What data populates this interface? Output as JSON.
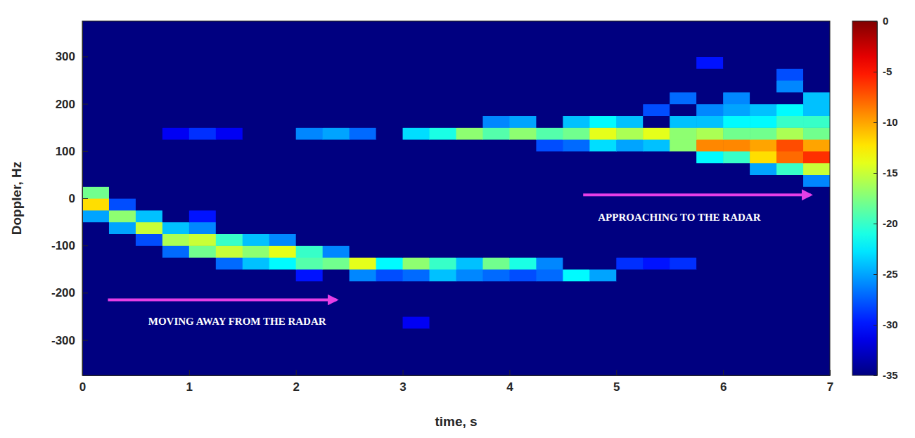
{
  "chart_data": {
    "type": "heatmap",
    "x_label": "time, s",
    "y_label": "Doppler, Hz",
    "xlim": [
      0,
      7
    ],
    "ylim": [
      -375,
      375
    ],
    "xticks": [
      0,
      1,
      2,
      3,
      4,
      5,
      6,
      7
    ],
    "yticks": [
      -300,
      -200,
      -100,
      0,
      100,
      200,
      300
    ],
    "x_edges": [
      0,
      0.25,
      0.5,
      0.75,
      1,
      1.25,
      1.5,
      1.75,
      2,
      2.25,
      2.5,
      2.75,
      3,
      3.25,
      3.5,
      3.75,
      4,
      4.25,
      4.5,
      4.75,
      5,
      5.25,
      5.5,
      5.75,
      6,
      6.25,
      6.5,
      6.75,
      7
    ],
    "y_edges": [
      -375,
      -350,
      -325,
      -300,
      -275,
      -250,
      -225,
      -200,
      -175,
      -150,
      -125,
      -100,
      -75,
      -50,
      -25,
      0,
      25,
      50,
      75,
      100,
      125,
      150,
      175,
      200,
      225,
      250,
      275,
      300,
      325,
      350,
      375
    ],
    "z": [
      [
        -35,
        -35,
        -35,
        -35,
        -35,
        -35,
        -35,
        -35,
        -35,
        -35,
        -35,
        -35,
        -35,
        -35,
        -35,
        -35,
        -35,
        -35,
        -35,
        -35,
        -35,
        -35,
        -35,
        -35,
        -35,
        -35,
        -35,
        -35
      ],
      [
        -35,
        -35,
        -35,
        -35,
        -35,
        -35,
        -35,
        -35,
        -35,
        -35,
        -35,
        -35,
        -35,
        -35,
        -35,
        -35,
        -35,
        -35,
        -35,
        -35,
        -35,
        -35,
        -35,
        -35,
        -35,
        -35,
        -35,
        -35
      ],
      [
        -35,
        -35,
        -35,
        -35,
        -35,
        -35,
        -35,
        -35,
        -35,
        -35,
        -35,
        -35,
        -35,
        -35,
        -35,
        -35,
        -35,
        -35,
        -35,
        -35,
        -35,
        -35,
        -35,
        -35,
        -35,
        -35,
        -35,
        -35
      ],
      [
        -35,
        -35,
        -35,
        -35,
        -35,
        -35,
        -35,
        -35,
        -35,
        -35,
        -35,
        -35,
        -35,
        -35,
        -35,
        -35,
        -35,
        -35,
        -35,
        -35,
        -35,
        -35,
        -35,
        -35,
        -35,
        -35,
        -35,
        -35
      ],
      [
        -35,
        -35,
        -35,
        -35,
        -35,
        -35,
        -35,
        -35,
        -35,
        -35,
        -35,
        -35,
        -31,
        -35,
        -35,
        -35,
        -35,
        -35,
        -35,
        -35,
        -35,
        -35,
        -35,
        -35,
        -35,
        -35,
        -35,
        -35
      ],
      [
        -35,
        -35,
        -35,
        -35,
        -35,
        -35,
        -35,
        -35,
        -35,
        -35,
        -35,
        -35,
        -35,
        -35,
        -35,
        -35,
        -35,
        -35,
        -35,
        -35,
        -35,
        -35,
        -35,
        -35,
        -35,
        -35,
        -35,
        -35
      ],
      [
        -35,
        -35,
        -35,
        -35,
        -35,
        -35,
        -35,
        -35,
        -35,
        -35,
        -35,
        -35,
        -35,
        -35,
        -35,
        -35,
        -35,
        -35,
        -35,
        -35,
        -35,
        -35,
        -35,
        -35,
        -35,
        -35,
        -35,
        -35
      ],
      [
        -35,
        -35,
        -35,
        -35,
        -35,
        -35,
        -35,
        -35,
        -35,
        -35,
        -35,
        -35,
        -35,
        -35,
        -35,
        -35,
        -35,
        -35,
        -35,
        -35,
        -35,
        -35,
        -35,
        -35,
        -35,
        -35,
        -35,
        -35
      ],
      [
        -35,
        -35,
        -35,
        -35,
        -35,
        -35,
        -35,
        -35,
        -30,
        -35,
        -26,
        -28,
        -27,
        -24,
        -26,
        -27,
        -28,
        -27,
        -22,
        -25,
        -35,
        -35,
        -35,
        -35,
        -35,
        -35,
        -35,
        -35
      ],
      [
        -35,
        -35,
        -35,
        -35,
        -35,
        -27,
        -24,
        -22,
        -19,
        -18,
        -14,
        -22,
        -17,
        -20,
        -24,
        -18,
        -21,
        -26,
        -35,
        -35,
        -29,
        -30,
        -29,
        -35,
        -35,
        -35,
        -35,
        -35
      ],
      [
        -35,
        -35,
        -35,
        -27,
        -18,
        -15,
        -17,
        -14,
        -20,
        -26,
        -35,
        -35,
        -35,
        -35,
        -35,
        -35,
        -35,
        -35,
        -35,
        -35,
        -35,
        -35,
        -35,
        -35,
        -35,
        -35,
        -35,
        -35
      ],
      [
        -35,
        -35,
        -28,
        -16,
        -15,
        -20,
        -24,
        -26,
        -35,
        -35,
        -35,
        -35,
        -35,
        -35,
        -35,
        -35,
        -35,
        -35,
        -35,
        -35,
        -35,
        -35,
        -35,
        -35,
        -35,
        -35,
        -35,
        -35
      ],
      [
        -35,
        -25,
        -15,
        -24,
        -26,
        -35,
        -35,
        -35,
        -35,
        -35,
        -35,
        -35,
        -35,
        -35,
        -35,
        -35,
        -35,
        -35,
        -35,
        -35,
        -35,
        -35,
        -35,
        -35,
        -35,
        -35,
        -35,
        -35
      ],
      [
        -25,
        -17,
        -24,
        -35,
        -30,
        -35,
        -35,
        -35,
        -35,
        -35,
        -35,
        -35,
        -35,
        -35,
        -35,
        -35,
        -35,
        -35,
        -35,
        -35,
        -35,
        -35,
        -35,
        -35,
        -35,
        -35,
        -35,
        -35
      ],
      [
        -12,
        -28,
        -35,
        -35,
        -35,
        -35,
        -35,
        -35,
        -35,
        -35,
        -35,
        -35,
        -35,
        -35,
        -35,
        -35,
        -35,
        -35,
        -35,
        -35,
        -35,
        -35,
        -35,
        -35,
        -35,
        -35,
        -35,
        -35
      ],
      [
        -18,
        -35,
        -35,
        -35,
        -35,
        -35,
        -35,
        -35,
        -35,
        -35,
        -35,
        -35,
        -35,
        -35,
        -35,
        -35,
        -35,
        -35,
        -35,
        -35,
        -35,
        -35,
        -35,
        -35,
        -35,
        -35,
        -35,
        -35
      ],
      [
        -35,
        -35,
        -35,
        -35,
        -35,
        -35,
        -35,
        -35,
        -35,
        -35,
        -35,
        -35,
        -35,
        -35,
        -35,
        -35,
        -35,
        -35,
        -35,
        -35,
        -35,
        -35,
        -35,
        -35,
        -35,
        -35,
        -35,
        -26
      ],
      [
        -35,
        -35,
        -35,
        -35,
        -35,
        -35,
        -35,
        -35,
        -35,
        -35,
        -35,
        -35,
        -35,
        -35,
        -35,
        -35,
        -35,
        -35,
        -35,
        -35,
        -35,
        -35,
        -35,
        -35,
        -35,
        -25,
        -20,
        -15
      ],
      [
        -35,
        -35,
        -35,
        -35,
        -35,
        -35,
        -35,
        -35,
        -35,
        -35,
        -35,
        -35,
        -35,
        -35,
        -35,
        -35,
        -35,
        -35,
        -35,
        -35,
        -35,
        -35,
        -35,
        -22,
        -20,
        -12,
        -8,
        -6
      ],
      [
        -35,
        -35,
        -35,
        -35,
        -35,
        -35,
        -35,
        -35,
        -35,
        -35,
        -35,
        -35,
        -35,
        -35,
        -35,
        -35,
        -35,
        -28,
        -27,
        -23,
        -25,
        -24,
        -17,
        -9,
        -9,
        -10,
        -7,
        -10
      ],
      [
        -35,
        -35,
        -35,
        -31,
        -29,
        -31,
        -35,
        -35,
        -26,
        -25,
        -27,
        -35,
        -23,
        -21,
        -17,
        -19,
        -17,
        -19,
        -18,
        -14,
        -16,
        -14,
        -17,
        -16,
        -18,
        -18,
        -16,
        -18
      ],
      [
        -35,
        -35,
        -35,
        -35,
        -35,
        -35,
        -35,
        -35,
        -35,
        -35,
        -35,
        -35,
        -35,
        -35,
        -35,
        -26,
        -25,
        -35,
        -24,
        -22,
        -24,
        -35,
        -24,
        -24,
        -22,
        -22,
        -20,
        -20
      ],
      [
        -35,
        -35,
        -35,
        -35,
        -35,
        -35,
        -35,
        -35,
        -35,
        -35,
        -35,
        -35,
        -35,
        -35,
        -35,
        -35,
        -35,
        -35,
        -35,
        -35,
        -35,
        -28,
        -35,
        -26,
        -25,
        -24,
        -22,
        -24
      ],
      [
        -35,
        -35,
        -35,
        -35,
        -35,
        -35,
        -35,
        -35,
        -35,
        -35,
        -35,
        -35,
        -35,
        -35,
        -35,
        -35,
        -35,
        -35,
        -35,
        -35,
        -35,
        -35,
        -27,
        -35,
        -26,
        -35,
        -35,
        -24
      ],
      [
        -35,
        -35,
        -35,
        -35,
        -35,
        -35,
        -35,
        -35,
        -35,
        -35,
        -35,
        -35,
        -35,
        -35,
        -35,
        -35,
        -35,
        -35,
        -35,
        -35,
        -35,
        -35,
        -35,
        -35,
        -35,
        -35,
        -26,
        -35
      ],
      [
        -35,
        -35,
        -35,
        -35,
        -35,
        -35,
        -35,
        -35,
        -35,
        -35,
        -35,
        -35,
        -35,
        -35,
        -35,
        -35,
        -35,
        -35,
        -35,
        -35,
        -35,
        -35,
        -35,
        -35,
        -35,
        -35,
        -28,
        -35
      ],
      [
        -35,
        -35,
        -35,
        -35,
        -35,
        -35,
        -35,
        -35,
        -35,
        -35,
        -35,
        -35,
        -35,
        -35,
        -35,
        -35,
        -35,
        -35,
        -35,
        -35,
        -35,
        -35,
        -35,
        -30,
        -35,
        -35,
        -35,
        -35
      ],
      [
        -35,
        -35,
        -35,
        -35,
        -35,
        -35,
        -35,
        -35,
        -35,
        -35,
        -35,
        -35,
        -35,
        -35,
        -35,
        -35,
        -35,
        -35,
        -35,
        -35,
        -35,
        -35,
        -35,
        -35,
        -35,
        -35,
        -35,
        -35
      ],
      [
        -35,
        -35,
        -35,
        -35,
        -35,
        -35,
        -35,
        -35,
        -35,
        -35,
        -35,
        -35,
        -35,
        -35,
        -35,
        -35,
        -35,
        -35,
        -35,
        -35,
        -35,
        -35,
        -35,
        -35,
        -35,
        -35,
        -35,
        -35
      ],
      [
        -35,
        -35,
        -35,
        -35,
        -35,
        -35,
        -35,
        -35,
        -35,
        -35,
        -35,
        -35,
        -35,
        -35,
        -35,
        -35,
        -35,
        -35,
        -35,
        -35,
        -35,
        -35,
        -35,
        -35,
        -35,
        -35,
        -35,
        -35
      ]
    ],
    "colorbar": {
      "range": [
        -35,
        0
      ],
      "ticks": [
        -35,
        -30,
        -25,
        -20,
        -15,
        -10,
        -5,
        0
      ]
    },
    "annotations": [
      {
        "text": "MOVING AWAY FROM THE RADAR",
        "x": 1.45,
        "y": -263,
        "arrow_x": [
          0.24,
          2.38
        ],
        "arrow_y": -215
      },
      {
        "text": "APPROACHING TO THE RADAR",
        "x": 5.59,
        "y": -43,
        "arrow_x": [
          4.69,
          6.82
        ],
        "arrow_y": 7
      }
    ]
  }
}
